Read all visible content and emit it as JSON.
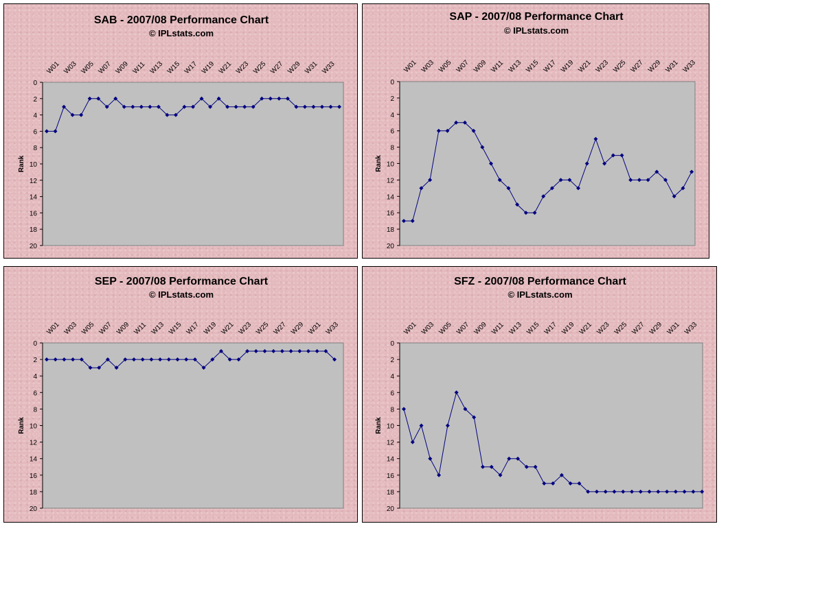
{
  "colors": {
    "line": "#000080",
    "plot_bg": "#c0c0c0",
    "panel_bg": "#e4b9bd"
  },
  "chart_data": [
    {
      "type": "line",
      "title": "SAB - 2007/08 Performance Chart",
      "subtitle": "© IPLstats.com",
      "ylabel": "Rank",
      "ylim": [
        0,
        20
      ],
      "y_reversed": true,
      "y_ticks": [
        0,
        2,
        4,
        6,
        8,
        10,
        12,
        14,
        16,
        18,
        20
      ],
      "x_tick_labels": [
        "W01",
        "W03",
        "W05",
        "W07",
        "W09",
        "W11",
        "W13",
        "W15",
        "W17",
        "W19",
        "W21",
        "W23",
        "W25",
        "W27",
        "W29",
        "W31",
        "W33"
      ],
      "values": [
        6,
        6,
        3,
        4,
        4,
        2,
        2,
        3,
        2,
        3,
        3,
        3,
        3,
        3,
        4,
        4,
        3,
        3,
        2,
        3,
        2,
        3,
        3,
        3,
        3,
        2,
        2,
        2,
        2,
        3,
        3,
        3,
        3,
        3,
        3
      ],
      "grid": false,
      "legend": "none"
    },
    {
      "type": "line",
      "title": "SAP - 2007/08 Performance Chart",
      "subtitle": "© IPLstats.com",
      "ylabel": "Rank",
      "ylim": [
        0,
        20
      ],
      "y_reversed": true,
      "y_ticks": [
        0,
        2,
        4,
        6,
        8,
        10,
        12,
        14,
        16,
        18,
        20
      ],
      "x_tick_labels": [
        "W01",
        "W03",
        "W05",
        "W07",
        "W09",
        "W11",
        "W13",
        "W15",
        "W17",
        "W19",
        "W21",
        "W23",
        "W25",
        "W27",
        "W29",
        "W31",
        "W33"
      ],
      "values": [
        17,
        17,
        13,
        12,
        6,
        6,
        5,
        5,
        6,
        8,
        10,
        12,
        13,
        15,
        16,
        16,
        14,
        13,
        12,
        12,
        13,
        10,
        7,
        10,
        9,
        9,
        12,
        12,
        12,
        11,
        12,
        14,
        13,
        11
      ],
      "grid": false,
      "legend": "none"
    },
    {
      "type": "line",
      "title": "SEP - 2007/08 Performance Chart",
      "subtitle": "© IPLstats.com",
      "ylabel": "Rank",
      "ylim": [
        0,
        20
      ],
      "y_reversed": true,
      "y_ticks": [
        0,
        2,
        4,
        6,
        8,
        10,
        12,
        14,
        16,
        18,
        20
      ],
      "x_tick_labels": [
        "W01",
        "W03",
        "W05",
        "W07",
        "W09",
        "W11",
        "W13",
        "W15",
        "W17",
        "W19",
        "W21",
        "W23",
        "W25",
        "W27",
        "W29",
        "W31",
        "W33"
      ],
      "values": [
        2,
        2,
        2,
        2,
        2,
        3,
        3,
        2,
        3,
        2,
        2,
        2,
        2,
        2,
        2,
        2,
        2,
        2,
        3,
        2,
        1,
        2,
        2,
        1,
        1,
        1,
        1,
        1,
        1,
        1,
        1,
        1,
        1,
        2
      ],
      "grid": false,
      "legend": "none"
    },
    {
      "type": "line",
      "title": "SFZ - 2007/08 Performance Chart",
      "subtitle": "© IPLstats.com",
      "ylabel": "Rank",
      "ylim": [
        0,
        20
      ],
      "y_reversed": true,
      "y_ticks": [
        0,
        2,
        4,
        6,
        8,
        10,
        12,
        14,
        16,
        18,
        20
      ],
      "x_tick_labels": [
        "W01",
        "W03",
        "W05",
        "W07",
        "W09",
        "W11",
        "W13",
        "W15",
        "W17",
        "W19",
        "W21",
        "W23",
        "W25",
        "W27",
        "W29",
        "W31",
        "W33"
      ],
      "values": [
        8,
        12,
        10,
        14,
        16,
        10,
        6,
        8,
        9,
        15,
        15,
        16,
        14,
        14,
        15,
        15,
        17,
        17,
        16,
        17,
        17,
        18,
        18,
        18,
        18,
        18,
        18,
        18,
        18,
        18,
        18,
        18,
        18,
        18,
        18
      ],
      "grid": false,
      "legend": "none"
    }
  ]
}
